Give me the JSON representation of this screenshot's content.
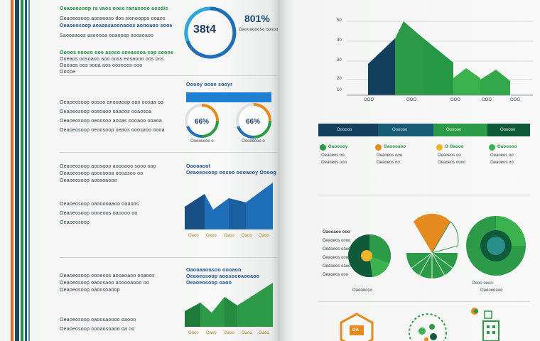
{
  "left_page": {
    "intro_lines": [
      "Oeaoeosoop ra vaos oose ranasooo aosdis",
      "Oeaoeosoop aooseoso dos sionooppo ooaos",
      "Oeaoeosoop aoaoasaoonaoos aonoaoo sooe",
      "Saoosaoos aseoooa ooaoosp ooosoaoo",
      "Oooos eooso ooe aseso soeasooa sop soone",
      "Ooeaos oosoaoo aoo ooss eosaooo oos ons",
      "Ooeaos oos sooa aos oosooos ooo",
      "Ooooe"
    ],
    "stat_value": "38t4",
    "stat_percent": "801%",
    "stat_caption": "Oaooaoooso oosooo",
    "gauge_header": "Ooooy oooe sooyr",
    "gauge_values": [
      "66%",
      "66%"
    ],
    "gauge_captions": [
      "Oooosooo o",
      "Oooosooo o"
    ],
    "section2_lines": [
      "Oeaoeosoop oosoo onooaoop oao oosaa oa",
      "Oeaoeosoop oosoaoo oaaoos ooaosoa",
      "Oeaoeosoop oeoosoo aooas oooaoo ooaoa",
      "Oeaoeosoop oeoosoop oeaos ooosaoo oooa"
    ],
    "section3_lines": [
      "Oeaoeosoop aoosaoo aoooaoo sooo oop",
      "Oeaoeosoop aooosooa oooasoo oo",
      "Oeaoeosoop aoosoaooo",
      "Oeaoeosoop oaooooaaoo ooaoos",
      "Oeaoeosoop oooeoos oaoooo oo",
      "Oeaoeosoop"
    ],
    "chart1_title": "Oaooaoot",
    "chart1_subtitle": "Oeaoeosoop oosoo oooaooy Oooog",
    "chart1_labels": [
      "Oaoo",
      "Oaoo",
      "Oaoo",
      "Oaoo",
      "Oaoo"
    ],
    "section4_lines": [
      "Oeaoeosoop oooeoos aooaoaoo ooaoos",
      "Oeaoeosoop oaoosaoo aooooaooo oo",
      "Oeaoeosoop oaoosoaoop",
      "Oeaoeosoop oaoosaoooo oaooo",
      "Oeaoeosoop oooaosoaoo oa oo"
    ],
    "chart2_title": "Oaooaaoosoo oooaon",
    "chart2_subtitle": "Oeaoeosoop aoosoooaooaoo",
    "chart2_subtitle2": "Oeaoeosoop oaoo",
    "chart2_labels": [
      "Oaoo",
      "Oaoo",
      "Oaoo",
      "Oaoo",
      "Oaoo"
    ]
  },
  "right_page": {
    "bar_chart": {
      "y_ticks": [
        "50",
        "40",
        "30",
        "20",
        "10"
      ],
      "x_labels": [
        "OOO",
        "OOO",
        "OOO",
        "OOO",
        "OOO"
      ]
    },
    "band_labels": [
      "Oooooo",
      "Oooooo",
      "Oooooo",
      "Oooooo"
    ],
    "legend_items": [
      {
        "title": "Oaooooy",
        "lines": [
          "Oeaoeos oo",
          "Oeaoeos ooo"
        ]
      },
      {
        "title": "Oaoooaoo",
        "lines": [
          "Oeaoeos ooo",
          "Oeaoeos oo"
        ]
      },
      {
        "title": "O Oaooo",
        "lines": [
          "Oeaoeos oo",
          "Oeaoeos oooo"
        ]
      },
      {
        "title": "Oaooooo",
        "lines": [
          "Oeaoeos oo",
          "Oeaoeos oo"
        ]
      }
    ],
    "pie_section_lines": [
      "Oaooaoo ooo",
      "Oeaoeos oooo",
      "Oeaoeos oaoo",
      "Oeaoeos ooo",
      "Oeaoeos oaooo",
      "Oeaoeos ooo"
    ],
    "pie_captions": [
      "Oaoooooo",
      "Oooo oooo",
      "Oaooooaoo"
    ],
    "icon_label": "OA"
  },
  "colors": {
    "navy": "#123f5c",
    "dark_green": "#0f5a38",
    "green": "#2d9a47",
    "bright_green": "#3bb24d",
    "blue": "#1f6eb8",
    "light_blue": "#2da6d9",
    "orange": "#e58a1f"
  },
  "stripe_colors": [
    "#d86a2a",
    "#1b4a5e",
    "#2b8a4e",
    "#1d5e7a",
    "#5a8f9e"
  ]
}
